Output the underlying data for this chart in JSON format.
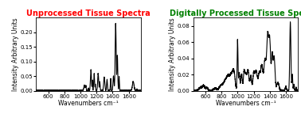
{
  "title1": "Unprocessed Tissue Spectra",
  "title2": "Digitally Processed Tissue Spectra",
  "title1_color": "#ff0000",
  "title2_color": "#008000",
  "xlabel": "Wavenumbers cm⁻¹",
  "ylabel": "Intensity Arbitrary Units",
  "xlim": [
    450,
    1750
  ],
  "ylim1": [
    0,
    0.25
  ],
  "ylim2": [
    0,
    0.09
  ],
  "yticks1": [
    0,
    0.05,
    0.1,
    0.15,
    0.2
  ],
  "yticks2": [
    0,
    0.02,
    0.04,
    0.06,
    0.08
  ],
  "xticks": [
    600,
    800,
    1000,
    1200,
    1400,
    1600
  ],
  "line_color": "#000000",
  "bg_color": "#ffffff",
  "title_fontsize": 7.0,
  "label_fontsize": 5.5,
  "tick_fontsize": 5.0,
  "linewidth": 0.8
}
